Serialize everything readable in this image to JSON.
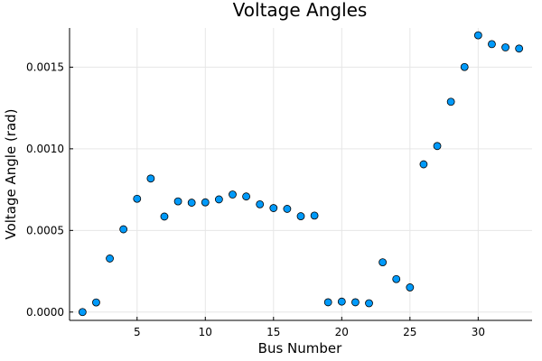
{
  "chart_data": {
    "type": "scatter",
    "title": "Voltage Angles",
    "xlabel": "Bus Number",
    "ylabel": "Voltage Angle (rad)",
    "xlim": [
      0.05,
      33.95
    ],
    "ylim": [
      -5.1e-05,
      0.00174
    ],
    "xticks": [
      5,
      10,
      15,
      20,
      25,
      30
    ],
    "xtick_labels": [
      "5",
      "10",
      "15",
      "20",
      "25",
      "30"
    ],
    "yticks": [
      0.0,
      0.0005,
      0.001,
      0.0015
    ],
    "ytick_labels": [
      "0.0000",
      "0.0005",
      "0.0010",
      "0.0015"
    ],
    "grid": true,
    "legend": false,
    "marker_color": "#009AFA",
    "points": [
      {
        "x": 1,
        "y": 0.0
      },
      {
        "x": 2,
        "y": 5.9e-05
      },
      {
        "x": 3,
        "y": 0.000328
      },
      {
        "x": 4,
        "y": 0.000507
      },
      {
        "x": 5,
        "y": 0.000694
      },
      {
        "x": 6,
        "y": 0.000818
      },
      {
        "x": 7,
        "y": 0.000585
      },
      {
        "x": 8,
        "y": 0.000678
      },
      {
        "x": 9,
        "y": 0.00067
      },
      {
        "x": 10,
        "y": 0.000672
      },
      {
        "x": 11,
        "y": 0.00069
      },
      {
        "x": 12,
        "y": 0.00072
      },
      {
        "x": 13,
        "y": 0.000708
      },
      {
        "x": 14,
        "y": 0.00066
      },
      {
        "x": 15,
        "y": 0.000637
      },
      {
        "x": 16,
        "y": 0.000632
      },
      {
        "x": 17,
        "y": 0.000587
      },
      {
        "x": 18,
        "y": 0.000591
      },
      {
        "x": 19,
        "y": 6e-05
      },
      {
        "x": 20,
        "y": 6.4e-05
      },
      {
        "x": 21,
        "y": 6e-05
      },
      {
        "x": 22,
        "y": 5.4e-05
      },
      {
        "x": 23,
        "y": 0.000305
      },
      {
        "x": 24,
        "y": 0.000202
      },
      {
        "x": 25,
        "y": 0.000151
      },
      {
        "x": 26,
        "y": 0.000905
      },
      {
        "x": 27,
        "y": 0.001017
      },
      {
        "x": 28,
        "y": 0.001288
      },
      {
        "x": 29,
        "y": 0.001501
      },
      {
        "x": 30,
        "y": 0.001695
      },
      {
        "x": 31,
        "y": 0.001641
      },
      {
        "x": 32,
        "y": 0.001621
      },
      {
        "x": 33,
        "y": 0.001614
      }
    ]
  }
}
